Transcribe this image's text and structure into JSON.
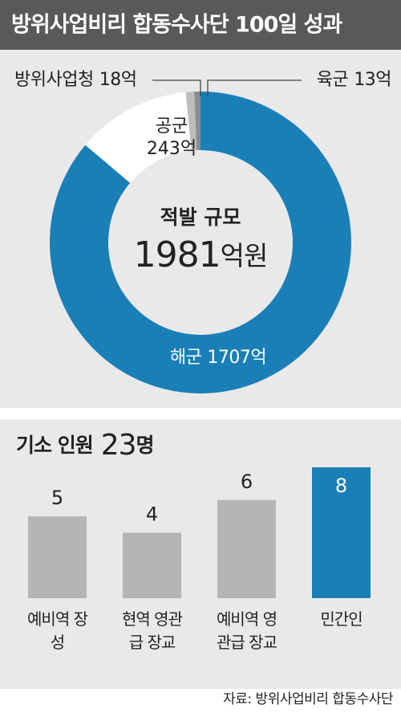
{
  "title": "방위사업비리 합동수사단 100일 성과",
  "source": "자료: 방위사업비리 합동수사단",
  "chart_data": [
    {
      "type": "donut",
      "title": "적발 규모",
      "total": 1981,
      "total_unit": "억원",
      "unit": "억",
      "categories": [
        "해군",
        "공군",
        "방위사업청",
        "육군"
      ],
      "values": [
        1707,
        243,
        18,
        13
      ],
      "colors": [
        "#1a7fb7",
        "#ffffff",
        "#bdbdbd",
        "#8c8c8c"
      ]
    },
    {
      "type": "bar",
      "title": "기소 인원",
      "total": 23,
      "unit": "명",
      "categories": [
        "예비역 장성",
        "현역 영관급 장교",
        "예비역 영관급 장교",
        "민간인"
      ],
      "values": [
        5,
        4,
        6,
        8
      ],
      "colors": [
        "#b5b5b5",
        "#b5b5b5",
        "#b5b5b5",
        "#1a7fb7"
      ],
      "ylim": [
        0,
        8
      ]
    }
  ]
}
